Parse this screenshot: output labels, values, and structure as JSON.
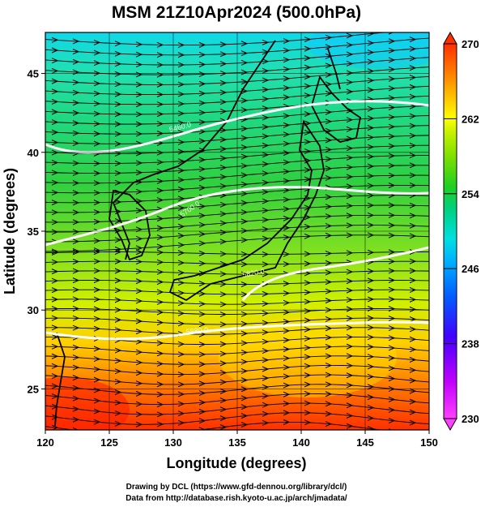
{
  "title": "MSM 21Z10Apr2024 (500.0hPa)",
  "x_axis": {
    "label": "Longitude (degrees)",
    "ticks": [
      "120",
      "125",
      "130",
      "135",
      "140",
      "145",
      "150"
    ],
    "range": [
      120,
      150
    ]
  },
  "y_axis": {
    "label": "Latitude  (degrees)",
    "ticks": [
      "25",
      "30",
      "35",
      "40",
      "45"
    ],
    "range": [
      22.4,
      47.6
    ]
  },
  "colorbar": {
    "ticks": [
      "270",
      "262",
      "254",
      "246",
      "238",
      "230"
    ],
    "range": [
      230,
      270
    ],
    "colors": [
      "#ff40ff",
      "#c000ff",
      "#4000ff",
      "#0060ff",
      "#00b0ff",
      "#00e0e0",
      "#00d080",
      "#20d020",
      "#80e000",
      "#c0f000",
      "#ffff00",
      "#ffc000",
      "#ff8000",
      "#ff4000",
      "#e82000"
    ]
  },
  "contours": [
    {
      "label": "5460.0"
    },
    {
      "label": "5700.0"
    },
    {
      "label": "5820.0"
    },
    {
      "label": "5880.0"
    }
  ],
  "credits": {
    "line1": "Drawing by DCL (https://www.gfd-dennou.org/library/dcl/)",
    "line2": "Data from http://database.rish.kyoto-u.ac.jp/arch/jmadata/"
  }
}
